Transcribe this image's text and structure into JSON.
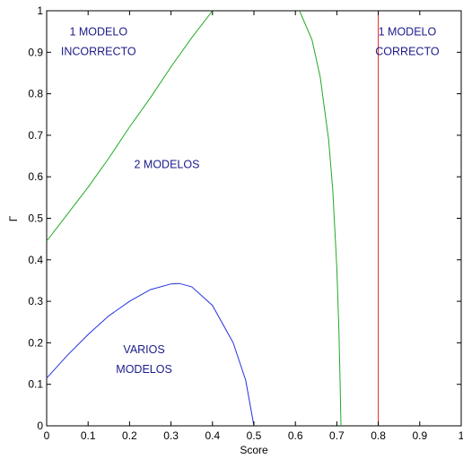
{
  "chart_data": {
    "type": "line",
    "title": "",
    "xlabel": "Score",
    "ylabel": "Γ",
    "xlim": [
      0,
      1
    ],
    "ylim": [
      0,
      1
    ],
    "x_ticks": [
      "0",
      "0.1",
      "0.2",
      "0.3",
      "0.4",
      "0.5",
      "0.6",
      "0.7",
      "0.8",
      "0.9",
      "1"
    ],
    "y_ticks": [
      "0",
      "0.1",
      "0.2",
      "0.3",
      "0.4",
      "0.5",
      "0.6",
      "0.7",
      "0.8",
      "0.9",
      "1"
    ],
    "grid": false,
    "series": [
      {
        "color": "#2233dd",
        "x": [
          0,
          0.05,
          0.1,
          0.15,
          0.2,
          0.25,
          0.3,
          0.32,
          0.35,
          0.4,
          0.45,
          0.48,
          0.5
        ],
        "y": [
          0.115,
          0.17,
          0.22,
          0.265,
          0.3,
          0.328,
          0.342,
          0.343,
          0.335,
          0.29,
          0.2,
          0.11,
          0
        ]
      },
      {
        "color": "#22aa22",
        "x": [
          0,
          0.05,
          0.1,
          0.15,
          0.2,
          0.25,
          0.3,
          0.35,
          0.4
        ],
        "y": [
          0.445,
          0.51,
          0.575,
          0.645,
          0.72,
          0.79,
          0.865,
          0.935,
          1.0
        ]
      },
      {
        "color": "#22aa22",
        "x": [
          0.61,
          0.64,
          0.66,
          0.68,
          0.69,
          0.7,
          0.705,
          0.708,
          0.71
        ],
        "y": [
          1.0,
          0.93,
          0.84,
          0.69,
          0.57,
          0.38,
          0.23,
          0.1,
          0
        ]
      },
      {
        "color": "#ee2222",
        "x": [
          0.8,
          0.8
        ],
        "y": [
          0,
          1
        ]
      }
    ],
    "annotations": [
      {
        "lines": [
          "1 MODELO",
          "INCORRECTO"
        ],
        "x": 0.125,
        "y": 0.925
      },
      {
        "lines": [
          "1 MODELO",
          "CORRECTO"
        ],
        "x": 0.87,
        "y": 0.925
      },
      {
        "lines": [
          "2 MODELOS"
        ],
        "x": 0.29,
        "y": 0.63
      },
      {
        "lines": [
          "VARIOS",
          "MODELOS"
        ],
        "x": 0.235,
        "y": 0.16
      }
    ]
  }
}
